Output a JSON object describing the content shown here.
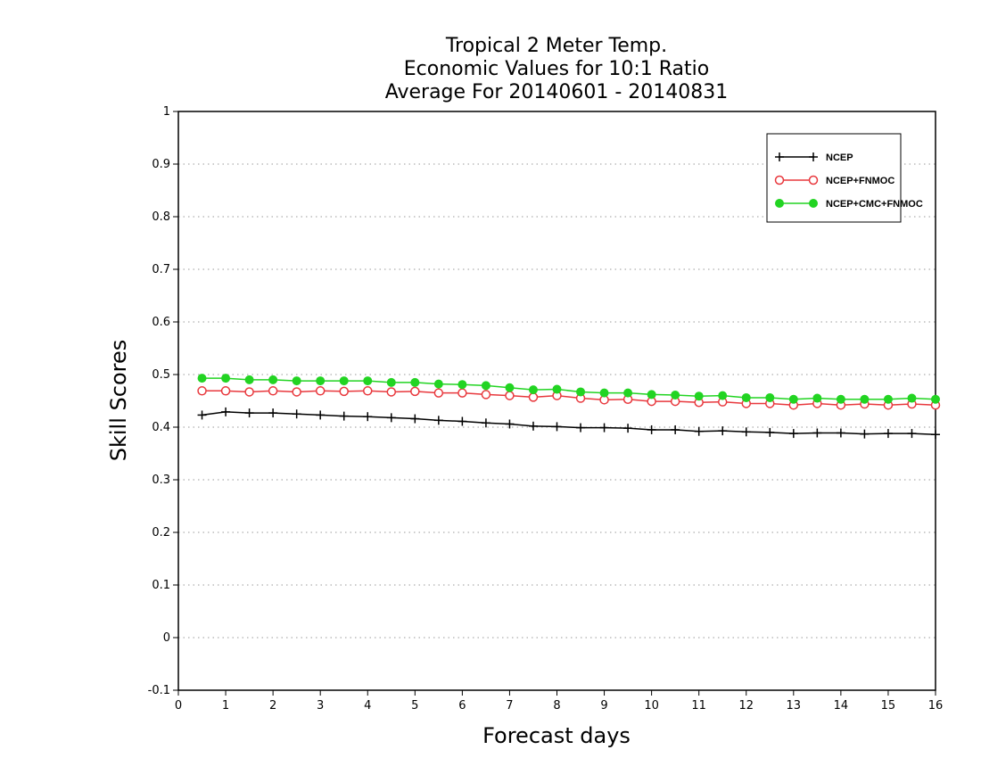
{
  "chart_data": {
    "type": "line",
    "title_lines": [
      "Tropical 2 Meter Temp.",
      "Economic Values for 10:1 Ratio",
      "Average For 20140601 - 20140831"
    ],
    "xlabel": "Forecast days",
    "ylabel": "Skill Scores",
    "xlim": [
      0,
      16
    ],
    "ylim": [
      -0.1,
      1
    ],
    "x_ticks": [
      0,
      1,
      2,
      3,
      4,
      5,
      6,
      7,
      8,
      9,
      10,
      11,
      12,
      13,
      14,
      15,
      16
    ],
    "x_tick_labels": [
      "0",
      "1",
      "2",
      "3",
      "4",
      "5",
      "6",
      "7",
      "8",
      "9",
      "10",
      "11",
      "12",
      "13",
      "14",
      "15",
      "16"
    ],
    "y_ticks": [
      -0.1,
      0,
      0.1,
      0.2,
      0.3,
      0.4,
      0.5,
      0.6,
      0.7,
      0.8,
      0.9,
      1
    ],
    "y_tick_labels": [
      "-0.1",
      "0",
      "0.1",
      "0.2",
      "0.3",
      "0.4",
      "0.5",
      "0.6",
      "0.7",
      "0.8",
      "0.9",
      "1"
    ],
    "grid": "horizontal dotted",
    "legend_position": "top-right",
    "x": [
      0.5,
      1,
      1.5,
      2,
      2.5,
      3,
      3.5,
      4,
      4.5,
      5,
      5.5,
      6,
      6.5,
      7,
      7.5,
      8,
      8.5,
      9,
      9.5,
      10,
      10.5,
      11,
      11.5,
      12,
      12.5,
      13,
      13.5,
      14,
      14.5,
      15,
      15.5,
      16
    ],
    "series": [
      {
        "name": "NCEP",
        "color": "#000000",
        "marker": "plus",
        "values": [
          0.423,
          0.429,
          0.427,
          0.427,
          0.425,
          0.423,
          0.421,
          0.42,
          0.418,
          0.416,
          0.413,
          0.411,
          0.408,
          0.406,
          0.402,
          0.401,
          0.399,
          0.399,
          0.398,
          0.395,
          0.395,
          0.392,
          0.393,
          0.391,
          0.39,
          0.388,
          0.389,
          0.389,
          0.387,
          0.388,
          0.388,
          0.386
        ]
      },
      {
        "name": "NCEP+FNMOC",
        "color": "#e8383d",
        "marker": "open-circle",
        "values": [
          0.469,
          0.469,
          0.467,
          0.469,
          0.467,
          0.469,
          0.468,
          0.469,
          0.467,
          0.468,
          0.465,
          0.465,
          0.462,
          0.46,
          0.457,
          0.46,
          0.455,
          0.452,
          0.453,
          0.449,
          0.449,
          0.447,
          0.448,
          0.445,
          0.445,
          0.442,
          0.445,
          0.442,
          0.444,
          0.442,
          0.444,
          0.442
        ]
      },
      {
        "name": "NCEP+CMC+FNMOC",
        "color": "#22d422",
        "marker": "filled-circle",
        "values": [
          0.493,
          0.493,
          0.49,
          0.49,
          0.488,
          0.488,
          0.488,
          0.488,
          0.485,
          0.485,
          0.482,
          0.481,
          0.479,
          0.475,
          0.471,
          0.472,
          0.467,
          0.465,
          0.465,
          0.462,
          0.461,
          0.459,
          0.46,
          0.456,
          0.456,
          0.453,
          0.455,
          0.453,
          0.453,
          0.453,
          0.455,
          0.453
        ]
      }
    ]
  }
}
